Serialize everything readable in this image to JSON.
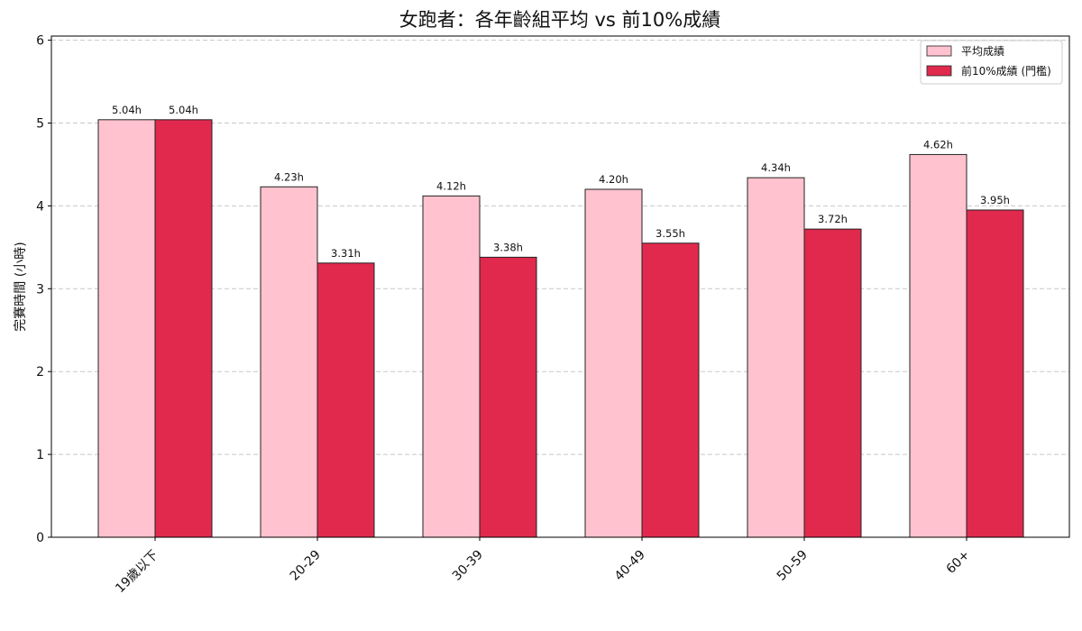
{
  "chart_data": {
    "type": "bar",
    "title": "女跑者：各年齡組平均 vs 前10%成績",
    "xlabel": "",
    "ylabel": "完賽時間 (小時)",
    "categories": [
      "19歲以下",
      "20-29",
      "30-39",
      "40-49",
      "50-59",
      "60+"
    ],
    "series": [
      {
        "name": "平均成績",
        "values": [
          5.04,
          4.23,
          4.12,
          4.2,
          4.34,
          4.62
        ],
        "labels": [
          "5.04h",
          "4.23h",
          "4.12h",
          "4.20h",
          "4.34h",
          "4.62h"
        ],
        "color": "#ffc2ce"
      },
      {
        "name": "前10%成績 (門檻)",
        "values": [
          5.04,
          3.31,
          3.38,
          3.55,
          3.72,
          3.95
        ],
        "labels": [
          "5.04h",
          "3.31h",
          "3.38h",
          "3.55h",
          "3.72h",
          "3.95h"
        ],
        "color": "#e0294d"
      }
    ],
    "ylim": [
      0,
      6.05
    ],
    "yticks": [
      "0",
      "1",
      "2",
      "3",
      "4",
      "5",
      "6"
    ],
    "grid": "y dashed",
    "legend_position": "top-right"
  }
}
